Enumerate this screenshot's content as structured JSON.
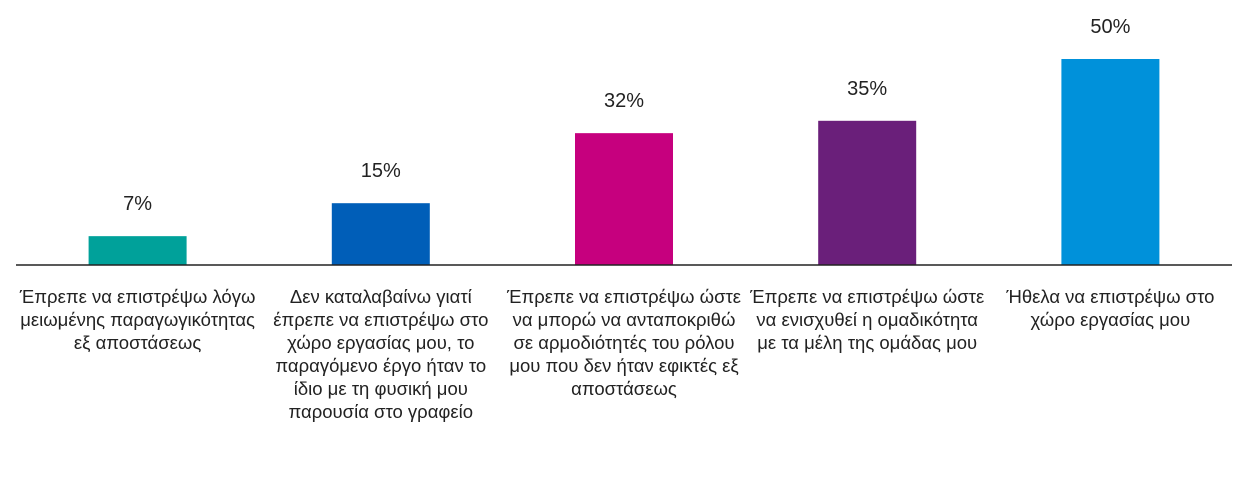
{
  "chart_data": {
    "type": "bar",
    "categories": [
      "Έπρεπε να επιστρέψω λόγω μειωμένης παραγωγικότητας εξ αποστάσεως",
      "Δεν καταλαβαίνω γιατί έπρεπε να επιστρέψω στο χώρο εργασίας μου, το παραγόμενο έργο ήταν το ίδιο με τη φυσική μου παρουσία στο γραφείο",
      "Έπρεπε να επιστρέψω ώστε να μπορώ να ανταποκριθώ σε αρμοδιότητές του ρόλου μου που δεν ήταν εφικτές εξ αποστάσεως",
      "Έπρεπε να επιστρέψω ώστε να ενισχυθεί η ομαδικότητα με τα μέλη της ομάδας μου",
      "Ήθελα να επιστρέψω στο χώρο εργασίας μου"
    ],
    "values": [
      7,
      15,
      32,
      35,
      50
    ],
    "value_labels": [
      "7%",
      "15%",
      "32%",
      "35%",
      "50%"
    ],
    "colors": [
      "#00a19a",
      "#005eb8",
      "#c6007e",
      "#6a1f7a",
      "#0091da"
    ]
  }
}
